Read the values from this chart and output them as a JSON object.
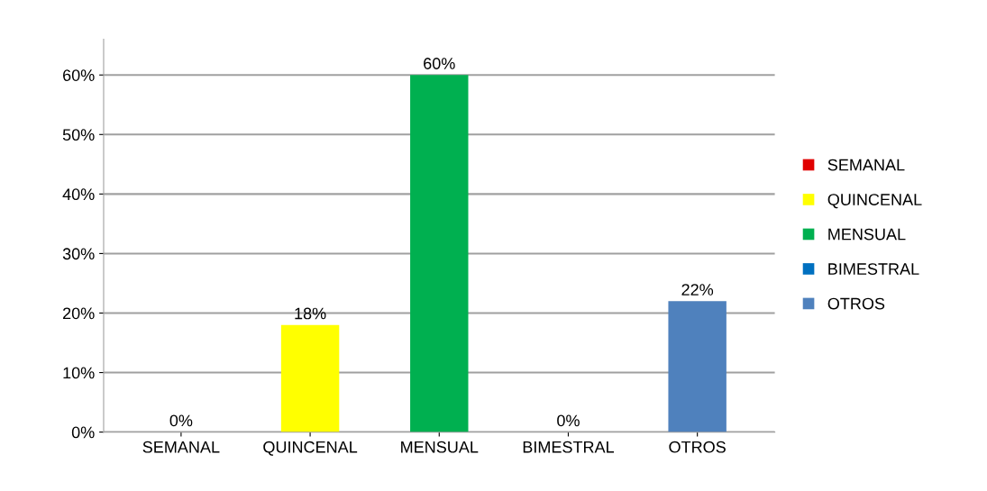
{
  "chart_data": {
    "type": "bar",
    "categories": [
      "SEMANAL",
      "QUINCENAL",
      "MENSUAL",
      "BIMESTRAL",
      "OTROS"
    ],
    "series": [
      {
        "name": "SEMANAL",
        "color": "#e00000",
        "values": [
          0,
          null,
          null,
          null,
          null
        ],
        "value_labels": [
          "0%",
          null,
          null,
          null,
          null
        ]
      },
      {
        "name": "QUINCENAL",
        "color": "#ffff00",
        "values": [
          null,
          18,
          null,
          null,
          null
        ],
        "value_labels": [
          null,
          "18%",
          null,
          null,
          null
        ]
      },
      {
        "name": "MENSUAL",
        "color": "#00b050",
        "values": [
          null,
          null,
          60,
          null,
          null
        ],
        "value_labels": [
          null,
          null,
          "60%",
          null,
          null
        ]
      },
      {
        "name": "BIMESTRAL",
        "color": "#0070c0",
        "values": [
          null,
          null,
          null,
          0,
          null
        ],
        "value_labels": [
          null,
          null,
          null,
          "0%",
          null
        ]
      },
      {
        "name": "OTROS",
        "color": "#4f81bd",
        "values": [
          null,
          null,
          null,
          null,
          22
        ],
        "value_labels": [
          null,
          null,
          null,
          null,
          "22%"
        ]
      }
    ],
    "ylim": [
      0,
      66
    ],
    "yticks": [
      {
        "value": 0,
        "label": "0%"
      },
      {
        "value": 10,
        "label": "10%"
      },
      {
        "value": 20,
        "label": "20%"
      },
      {
        "value": 30,
        "label": "30%"
      },
      {
        "value": 40,
        "label": "40%"
      },
      {
        "value": 50,
        "label": "50%"
      },
      {
        "value": 60,
        "label": "60%"
      }
    ],
    "grid": "y",
    "legend": "right"
  }
}
